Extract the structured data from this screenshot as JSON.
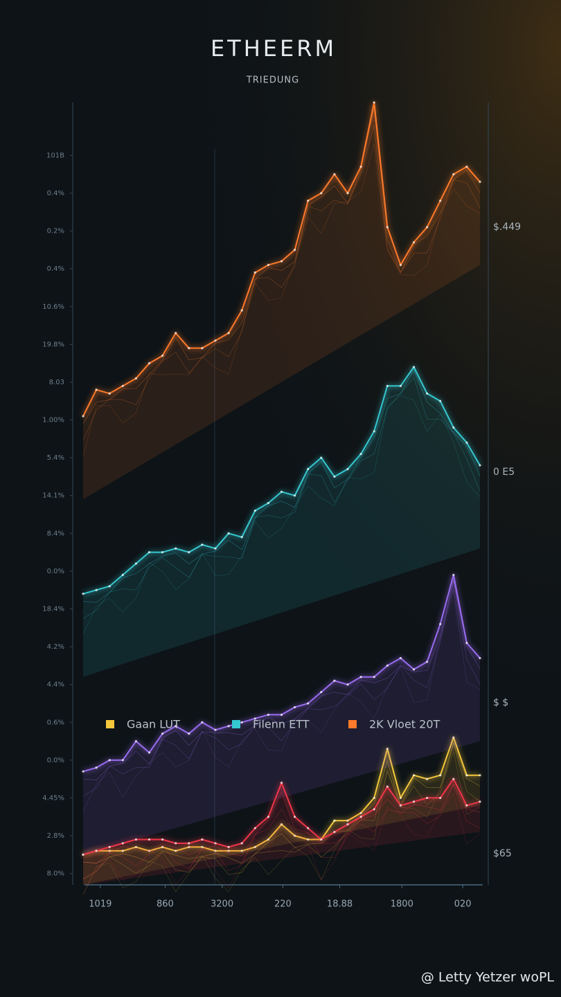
{
  "chart_data": {
    "type": "line",
    "title": "ETHEERM",
    "subtitle": "TRIEDUNG",
    "watermark": "@ Letty Yetzer woPL",
    "x": [
      0,
      1,
      2,
      3,
      4,
      5,
      6,
      7,
      8,
      9,
      10,
      11,
      12,
      13,
      14,
      15,
      16,
      17,
      18,
      19,
      20,
      21,
      22,
      23,
      24,
      25,
      26,
      27,
      28,
      29,
      30
    ],
    "xlim": [
      0,
      30
    ],
    "xticks": [
      {
        "value": 1.3,
        "label": "1019"
      },
      {
        "value": 6.2,
        "label": "860"
      },
      {
        "value": 10.5,
        "label": "3200"
      },
      {
        "value": 15.1,
        "label": "220"
      },
      {
        "value": 19.4,
        "label": "18.88"
      },
      {
        "value": 24.1,
        "label": "1800"
      },
      {
        "value": 28.7,
        "label": "020"
      }
    ],
    "ylim": [
      -0.3,
      20.4
    ],
    "yticks": [
      {
        "value": 0,
        "label": "8.0%"
      },
      {
        "value": 1,
        "label": "2.8%"
      },
      {
        "value": 2,
        "label": "4.45%"
      },
      {
        "value": 3,
        "label": "0.0%"
      },
      {
        "value": 4,
        "label": "0.6%"
      },
      {
        "value": 5,
        "label": "4.4%"
      },
      {
        "value": 6,
        "label": "4.2%"
      },
      {
        "value": 7,
        "label": "18.4%"
      },
      {
        "value": 8,
        "label": "0.0%"
      },
      {
        "value": 9,
        "label": "8.4%"
      },
      {
        "value": 10,
        "label": "14.1%"
      },
      {
        "value": 11,
        "label": "5.4%"
      },
      {
        "value": 12,
        "label": "1.00%"
      },
      {
        "value": 13,
        "label": "8.03"
      },
      {
        "value": 14,
        "label": "19.8%"
      },
      {
        "value": 15,
        "label": "10.6%"
      },
      {
        "value": 16,
        "label": "0.4%"
      },
      {
        "value": 17,
        "label": "0.2%"
      },
      {
        "value": 18,
        "label": "0.4%"
      },
      {
        "value": 19,
        "label": "101B"
      }
    ],
    "annotations": [
      "$.449",
      "0 E5",
      "$ $",
      "$65"
    ],
    "series": [
      {
        "name": "Gaan LUT",
        "color": "#f5c83b",
        "values": [
          0.5,
          0.6,
          0.6,
          0.6,
          0.7,
          0.6,
          0.7,
          0.6,
          0.7,
          0.7,
          0.6,
          0.6,
          0.6,
          0.7,
          0.9,
          1.3,
          1.0,
          0.9,
          0.9,
          1.4,
          1.4,
          1.6,
          2.0,
          3.3,
          2.0,
          2.6,
          2.5,
          2.6,
          3.6,
          2.6,
          2.6
        ]
      },
      {
        "name": "Filenn ETT",
        "color": "#35c8d0",
        "values": [
          7.4,
          7.5,
          7.6,
          7.9,
          8.2,
          8.5,
          8.5,
          8.6,
          8.5,
          8.7,
          8.6,
          9.0,
          8.9,
          9.6,
          9.8,
          10.1,
          10.0,
          10.7,
          11.0,
          10.5,
          10.7,
          11.1,
          11.7,
          12.9,
          12.9,
          13.4,
          12.7,
          12.5,
          11.8,
          11.4,
          10.8
        ]
      },
      {
        "name": "2K Vloet 20T",
        "color": "#ff7a2a",
        "values": [
          12.1,
          12.8,
          12.7,
          12.9,
          13.1,
          13.5,
          13.7,
          14.3,
          13.9,
          13.9,
          14.1,
          14.3,
          14.9,
          15.9,
          16.1,
          16.2,
          16.5,
          17.8,
          18.0,
          18.5,
          18.0,
          18.7,
          20.4,
          17.1,
          16.1,
          16.7,
          17.1,
          17.8,
          18.5,
          18.7,
          18.3
        ]
      },
      {
        "color": "#9a6cf0",
        "values": [
          2.7,
          2.8,
          3.0,
          3.0,
          3.5,
          3.2,
          3.7,
          3.9,
          3.7,
          4.0,
          3.8,
          3.9,
          4.0,
          4.1,
          4.2,
          4.2,
          4.4,
          4.5,
          4.8,
          5.1,
          5.0,
          5.2,
          5.2,
          5.5,
          5.7,
          5.4,
          5.6,
          6.6,
          7.9,
          6.1,
          5.7
        ]
      },
      {
        "color": "#f0364a",
        "values": [
          0.5,
          0.6,
          0.7,
          0.8,
          0.9,
          0.9,
          0.9,
          0.8,
          0.8,
          0.9,
          0.8,
          0.7,
          0.8,
          1.2,
          1.5,
          2.4,
          1.5,
          1.2,
          0.9,
          1.1,
          1.3,
          1.5,
          1.7,
          2.3,
          1.8,
          1.9,
          2.0,
          2.0,
          2.5,
          1.8,
          1.9
        ]
      }
    ]
  }
}
